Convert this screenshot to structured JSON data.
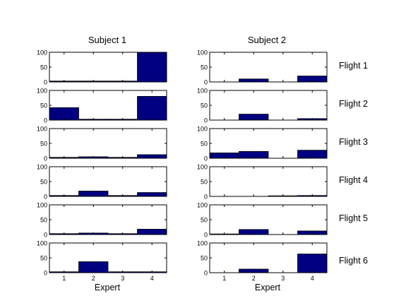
{
  "colors": {
    "bar": "#000080",
    "axis": "#000000",
    "background": "#ffffff"
  },
  "column_titles": [
    "Subject 1",
    "Subject 2"
  ],
  "row_labels": [
    "Flight 1",
    "Flight 2",
    "Flight 3",
    "Flight 4",
    "Flight 5",
    "Flight 6"
  ],
  "xlabel": "Expert",
  "chart_data": {
    "type": "bar",
    "categories": [
      "1",
      "2",
      "3",
      "4"
    ],
    "ylim": [
      0,
      100
    ],
    "yticks": [
      "0",
      "50",
      "100"
    ],
    "xlabel": "Expert",
    "grid": false,
    "panels": [
      {
        "subject": "Subject 1",
        "flight": "Flight 1",
        "values": [
          3,
          3,
          3,
          100
        ]
      },
      {
        "subject": "Subject 2",
        "flight": "Flight 1",
        "values": [
          0,
          10,
          0,
          20
        ]
      },
      {
        "subject": "Subject 1",
        "flight": "Flight 2",
        "values": [
          42,
          3,
          3,
          80
        ]
      },
      {
        "subject": "Subject 2",
        "flight": "Flight 2",
        "values": [
          0,
          20,
          0,
          5
        ]
      },
      {
        "subject": "Subject 1",
        "flight": "Flight 3",
        "values": [
          3,
          5,
          3,
          12
        ]
      },
      {
        "subject": "Subject 2",
        "flight": "Flight 3",
        "values": [
          18,
          23,
          0,
          27
        ]
      },
      {
        "subject": "Subject 1",
        "flight": "Flight 4",
        "values": [
          3,
          18,
          3,
          13
        ]
      },
      {
        "subject": "Subject 2",
        "flight": "Flight 4",
        "values": [
          0,
          0,
          2,
          3
        ]
      },
      {
        "subject": "Subject 1",
        "flight": "Flight 5",
        "values": [
          3,
          5,
          3,
          18
        ]
      },
      {
        "subject": "Subject 2",
        "flight": "Flight 5",
        "values": [
          2,
          17,
          0,
          12
        ]
      },
      {
        "subject": "Subject 1",
        "flight": "Flight 6",
        "values": [
          3,
          37,
          3,
          3
        ]
      },
      {
        "subject": "Subject 2",
        "flight": "Flight 6",
        "values": [
          0,
          12,
          0,
          63
        ]
      }
    ]
  }
}
